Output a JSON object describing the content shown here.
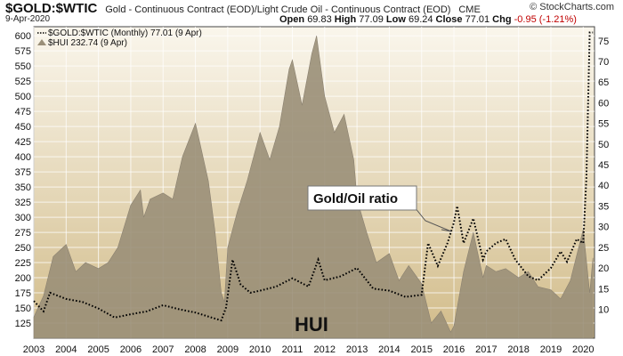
{
  "header": {
    "symbol": "$GOLD:$WTIC",
    "description": "Gold - Continuous Contract (EOD)/Light Crude Oil - Continuous Contract (EOD)",
    "exchange": "CME",
    "credit": "© StockCharts.com",
    "date": "9-Apr-2020",
    "open_label": "Open",
    "open_value": "69.83",
    "high_label": "High",
    "high_value": "77.09",
    "low_label": "Low",
    "low_value": "69.24",
    "close_label": "Close",
    "close_value": "77.01",
    "chg_label": "Chg",
    "chg_value": "-0.95 (-1.21%)",
    "chg_color": "#c00000"
  },
  "colors": {
    "background_top": "#faf6ec",
    "background_bottom": "#d2bc8a",
    "hui_area": "#9a8f78",
    "ratio_line": "#000000",
    "grid": "#ffffff"
  },
  "chart_data": {
    "type": "area",
    "grid": true,
    "legend_placement": "top-left",
    "x_tick_labels": [
      "2003",
      "2004",
      "2005",
      "2006",
      "2007",
      "2008",
      "2009",
      "2010",
      "2011",
      "2012",
      "2013",
      "2014",
      "2015",
      "2016",
      "2017",
      "2018",
      "2019",
      "2020"
    ],
    "left_axis": {
      "series": "HUI",
      "ylim": [
        100,
        615
      ],
      "ticks": [
        600,
        575,
        550,
        525,
        500,
        475,
        450,
        425,
        400,
        375,
        350,
        325,
        300,
        275,
        250,
        225,
        200,
        175,
        150,
        125
      ]
    },
    "right_axis": {
      "series": "$GOLD:$WTIC",
      "ylim": [
        3,
        78.4
      ],
      "ticks": [
        75,
        70,
        65,
        60,
        55,
        50,
        45,
        40,
        35,
        30,
        25,
        20,
        15,
        10
      ]
    },
    "legend": [
      {
        "label": "$GOLD:$WTIC (Monthly) 77.01 (9 Apr)",
        "style": "dotted"
      },
      {
        "label": "$HUI 232.74 (9 Apr)",
        "style": "area"
      }
    ],
    "annotations": [
      {
        "text": "Gold/Oil ratio"
      },
      {
        "text": "HUI"
      }
    ],
    "series": [
      {
        "name": "$HUI",
        "axis": "left",
        "x": [
          2003.0,
          2003.3,
          2003.6,
          2004.0,
          2004.3,
          2004.6,
          2005.0,
          2005.3,
          2005.6,
          2006.0,
          2006.3,
          2006.4,
          2006.6,
          2007.0,
          2007.3,
          2007.6,
          2008.0,
          2008.15,
          2008.4,
          2008.6,
          2008.8,
          2008.9,
          2009.0,
          2009.3,
          2009.6,
          2010.0,
          2010.3,
          2010.6,
          2010.9,
          2011.0,
          2011.3,
          2011.6,
          2011.75,
          2012.0,
          2012.3,
          2012.6,
          2012.9,
          2013.0,
          2013.3,
          2013.6,
          2014.0,
          2014.3,
          2014.6,
          2015.0,
          2015.3,
          2015.6,
          2015.9,
          2016.0,
          2016.3,
          2016.6,
          2016.9,
          2017.0,
          2017.3,
          2017.6,
          2018.0,
          2018.3,
          2018.6,
          2019.0,
          2019.3,
          2019.6,
          2020.0,
          2020.2,
          2020.3
        ],
        "values": [
          135,
          170,
          235,
          255,
          210,
          225,
          215,
          225,
          250,
          320,
          345,
          300,
          330,
          340,
          330,
          400,
          455,
          420,
          360,
          280,
          175,
          160,
          250,
          310,
          360,
          440,
          395,
          450,
          545,
          560,
          485,
          570,
          600,
          500,
          440,
          470,
          395,
          330,
          275,
          225,
          240,
          195,
          220,
          190,
          125,
          145,
          110,
          120,
          210,
          275,
          200,
          220,
          210,
          215,
          200,
          210,
          185,
          180,
          165,
          195,
          280,
          175,
          232.74
        ]
      },
      {
        "name": "$GOLD:$WTIC",
        "axis": "right",
        "x": [
          2003.0,
          2003.3,
          2003.5,
          2004.0,
          2004.5,
          2005.0,
          2005.5,
          2006.0,
          2006.5,
          2007.0,
          2007.5,
          2008.0,
          2008.5,
          2008.8,
          2008.95,
          2009.15,
          2009.4,
          2009.7,
          2010.0,
          2010.5,
          2011.0,
          2011.5,
          2011.8,
          2012.0,
          2012.5,
          2013.0,
          2013.5,
          2014.0,
          2014.5,
          2015.0,
          2015.2,
          2015.5,
          2015.8,
          2016.0,
          2016.1,
          2016.3,
          2016.6,
          2016.9,
          2017.0,
          2017.3,
          2017.6,
          2017.9,
          2018.0,
          2018.3,
          2018.6,
          2019.0,
          2019.3,
          2019.5,
          2019.8,
          2020.0,
          2020.1,
          2020.2,
          2020.3
        ],
        "values": [
          12,
          9.5,
          14,
          12.5,
          11.8,
          10.2,
          8,
          8.8,
          9.5,
          11,
          10,
          9.2,
          8,
          7.3,
          10.5,
          22,
          16,
          14,
          14.5,
          15.5,
          17.5,
          15.5,
          22,
          17,
          18,
          20,
          15,
          14.5,
          13,
          13.5,
          26,
          20.5,
          26,
          31,
          35,
          26,
          32,
          22,
          24,
          26,
          27,
          22,
          21,
          18,
          17,
          20,
          24,
          21.5,
          27,
          26,
          42,
          77,
          77.01
        ]
      }
    ]
  }
}
